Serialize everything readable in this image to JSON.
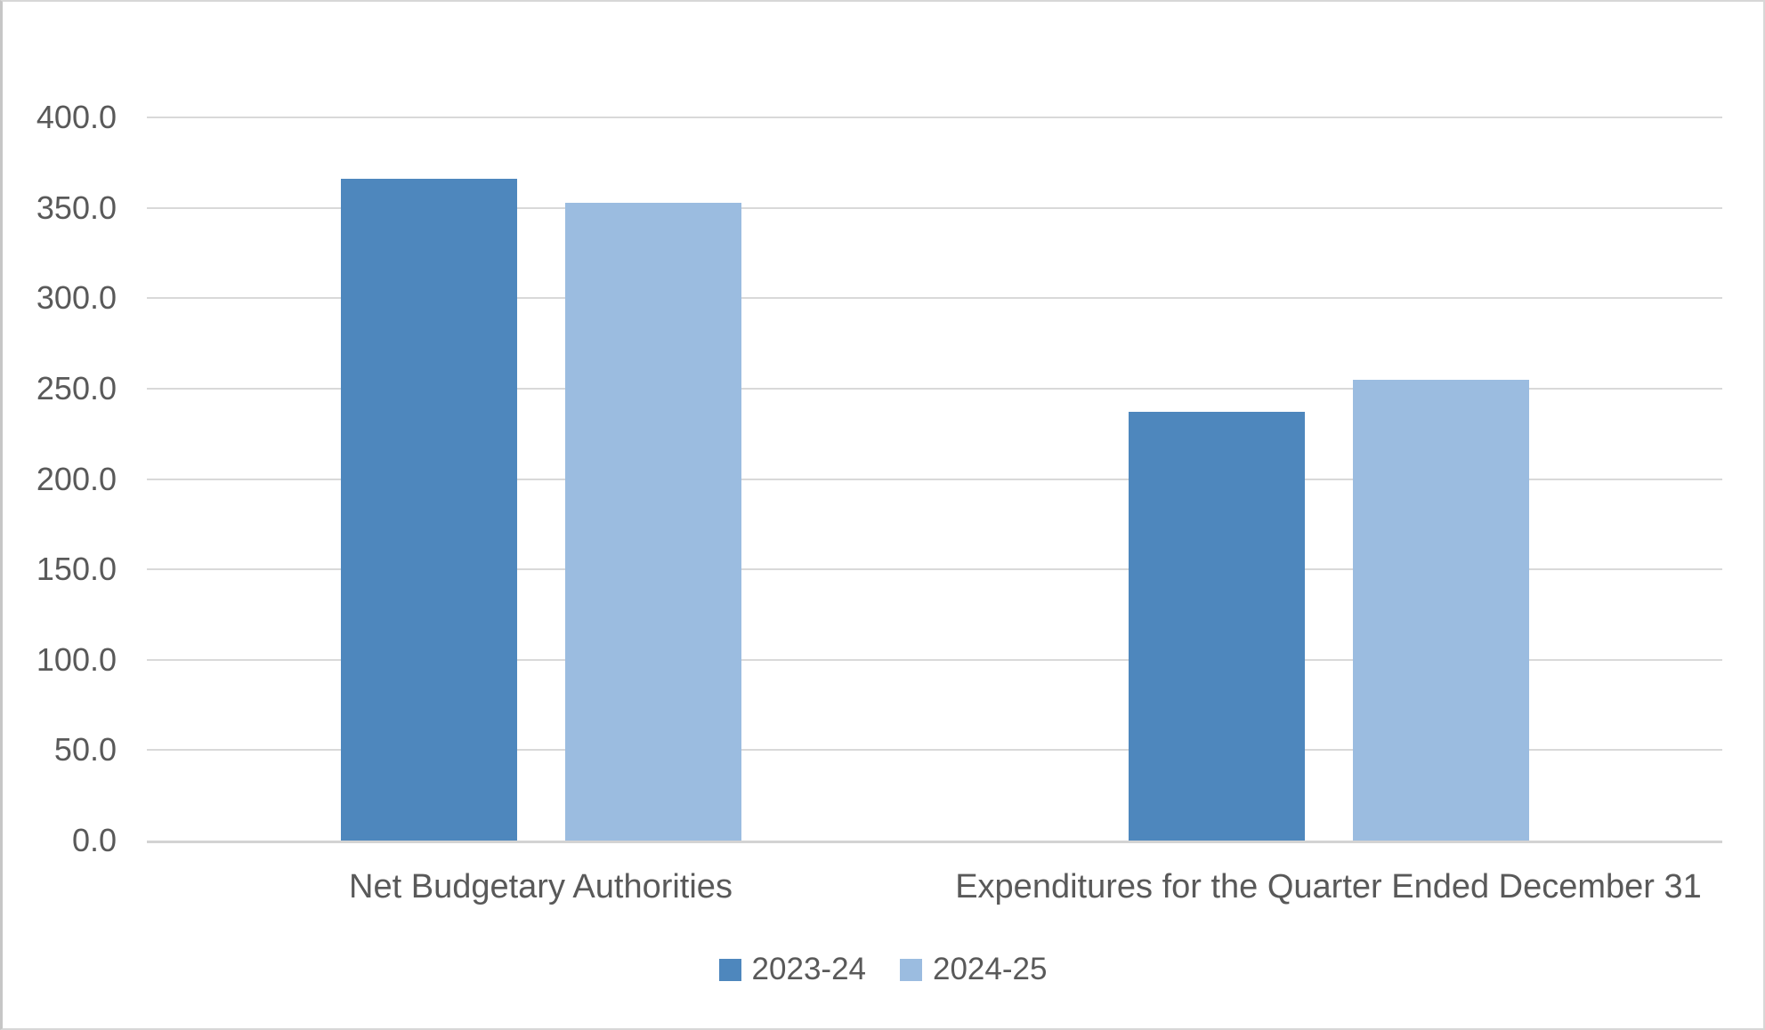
{
  "chart_data": {
    "type": "bar",
    "title": "",
    "categories": [
      "Net Budgetary Authorities",
      "Expenditures for the Quarter Ended December 31"
    ],
    "series": [
      {
        "name": "2023-24",
        "values": [
          366,
          237
        ],
        "color": "#4E87BD"
      },
      {
        "name": "2024-25",
        "values": [
          353,
          255
        ],
        "color": "#9BBCE0"
      }
    ],
    "ylim": [
      0,
      400
    ],
    "y_tick_step": 50,
    "y_tick_labels": [
      "0.0",
      "50.0",
      "100.0",
      "150.0",
      "200.0",
      "250.0",
      "300.0",
      "350.0",
      "400.0"
    ],
    "grid": "horizontal",
    "legend_position": "bottom"
  },
  "styles": {
    "text_color": "#595959",
    "gridline_color": "#D9D9D9",
    "axis_line_color": "#D3D3D3",
    "frame_border_color": "#D7D7D7",
    "background": "#FFFFFF",
    "series_colors": [
      "#4E87BD",
      "#9BBCE0"
    ]
  }
}
